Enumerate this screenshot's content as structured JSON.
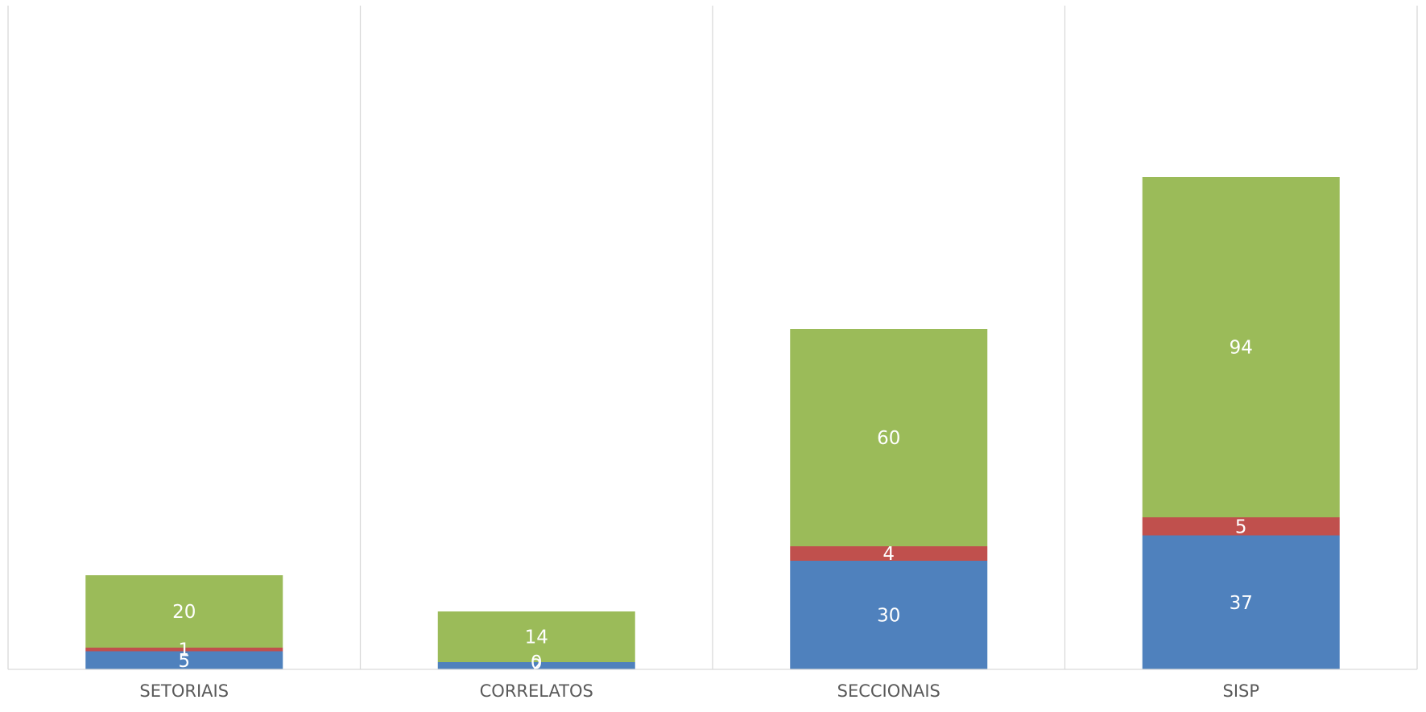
{
  "chart_data": {
    "type": "bar",
    "stacked": true,
    "categories": [
      "SETORIAIS",
      "CORRELATOS",
      "SECCIONAIS",
      "SISP"
    ],
    "series": [
      {
        "values": [
          5,
          2,
          30,
          37
        ],
        "color": "#4f81bd"
      },
      {
        "values": [
          1,
          0,
          4,
          5
        ],
        "color": "#c0504d"
      },
      {
        "values": [
          20,
          14,
          60,
          94
        ],
        "color": "#9bbb59"
      }
    ],
    "ylim": [
      0,
      160
    ],
    "grid": "vertical-category-separators",
    "legend": "none",
    "title": "",
    "xlabel": "",
    "ylabel": ""
  }
}
